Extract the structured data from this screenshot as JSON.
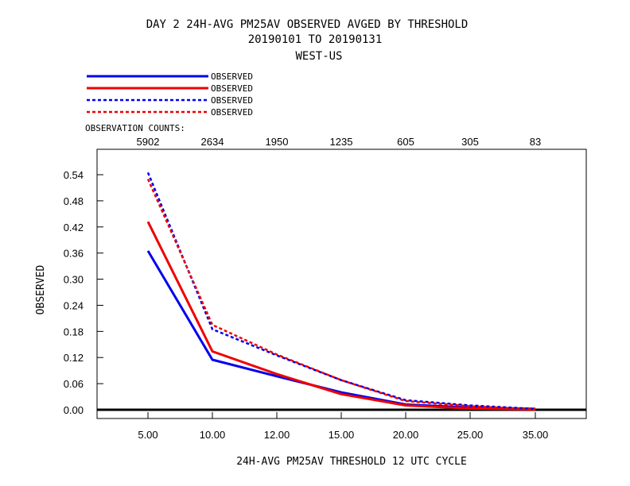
{
  "chart_data": {
    "type": "line",
    "title_lines": [
      "DAY 2   24H-AVG PM25AV OBSERVED   AVGED BY THRESHOLD",
      "20190101 TO 20190131",
      "WEST-US"
    ],
    "xlabel": "24H-AVG PM25AV THRESHOLD     12 UTC CYCLE",
    "ylabel": "OBSERVED",
    "counts_label": "OBSERVATION COUNTS:",
    "counts": [
      "5902",
      "2634",
      "1950",
      "1235",
      "605",
      "305",
      "83"
    ],
    "categories": [
      "5.00",
      "10.00",
      "12.00",
      "15.00",
      "20.00",
      "25.00",
      "35.00"
    ],
    "yticks": [
      "0.00",
      "0.06",
      "0.12",
      "0.18",
      "0.24",
      "0.30",
      "0.36",
      "0.42",
      "0.48",
      "0.54"
    ],
    "ylim": [
      -0.02,
      0.6
    ],
    "series": [
      {
        "name": "OBSERVED",
        "color": "#0000ee",
        "dash": "solid",
        "values": [
          0.365,
          0.115,
          0.077,
          0.04,
          0.012,
          0.005,
          0.002
        ]
      },
      {
        "name": "OBSERVED",
        "color": "#ee0000",
        "dash": "solid",
        "values": [
          0.432,
          0.134,
          0.082,
          0.036,
          0.01,
          0.003,
          0.001
        ]
      },
      {
        "name": "OBSERVED",
        "color": "#0000ee",
        "dash": "dashed",
        "values": [
          0.545,
          0.185,
          0.125,
          0.068,
          0.022,
          0.01,
          0.002
        ]
      },
      {
        "name": "OBSERVED",
        "color": "#ee0000",
        "dash": "dashed",
        "values": [
          0.53,
          0.195,
          0.127,
          0.068,
          0.02,
          0.008,
          0.001
        ]
      }
    ]
  }
}
